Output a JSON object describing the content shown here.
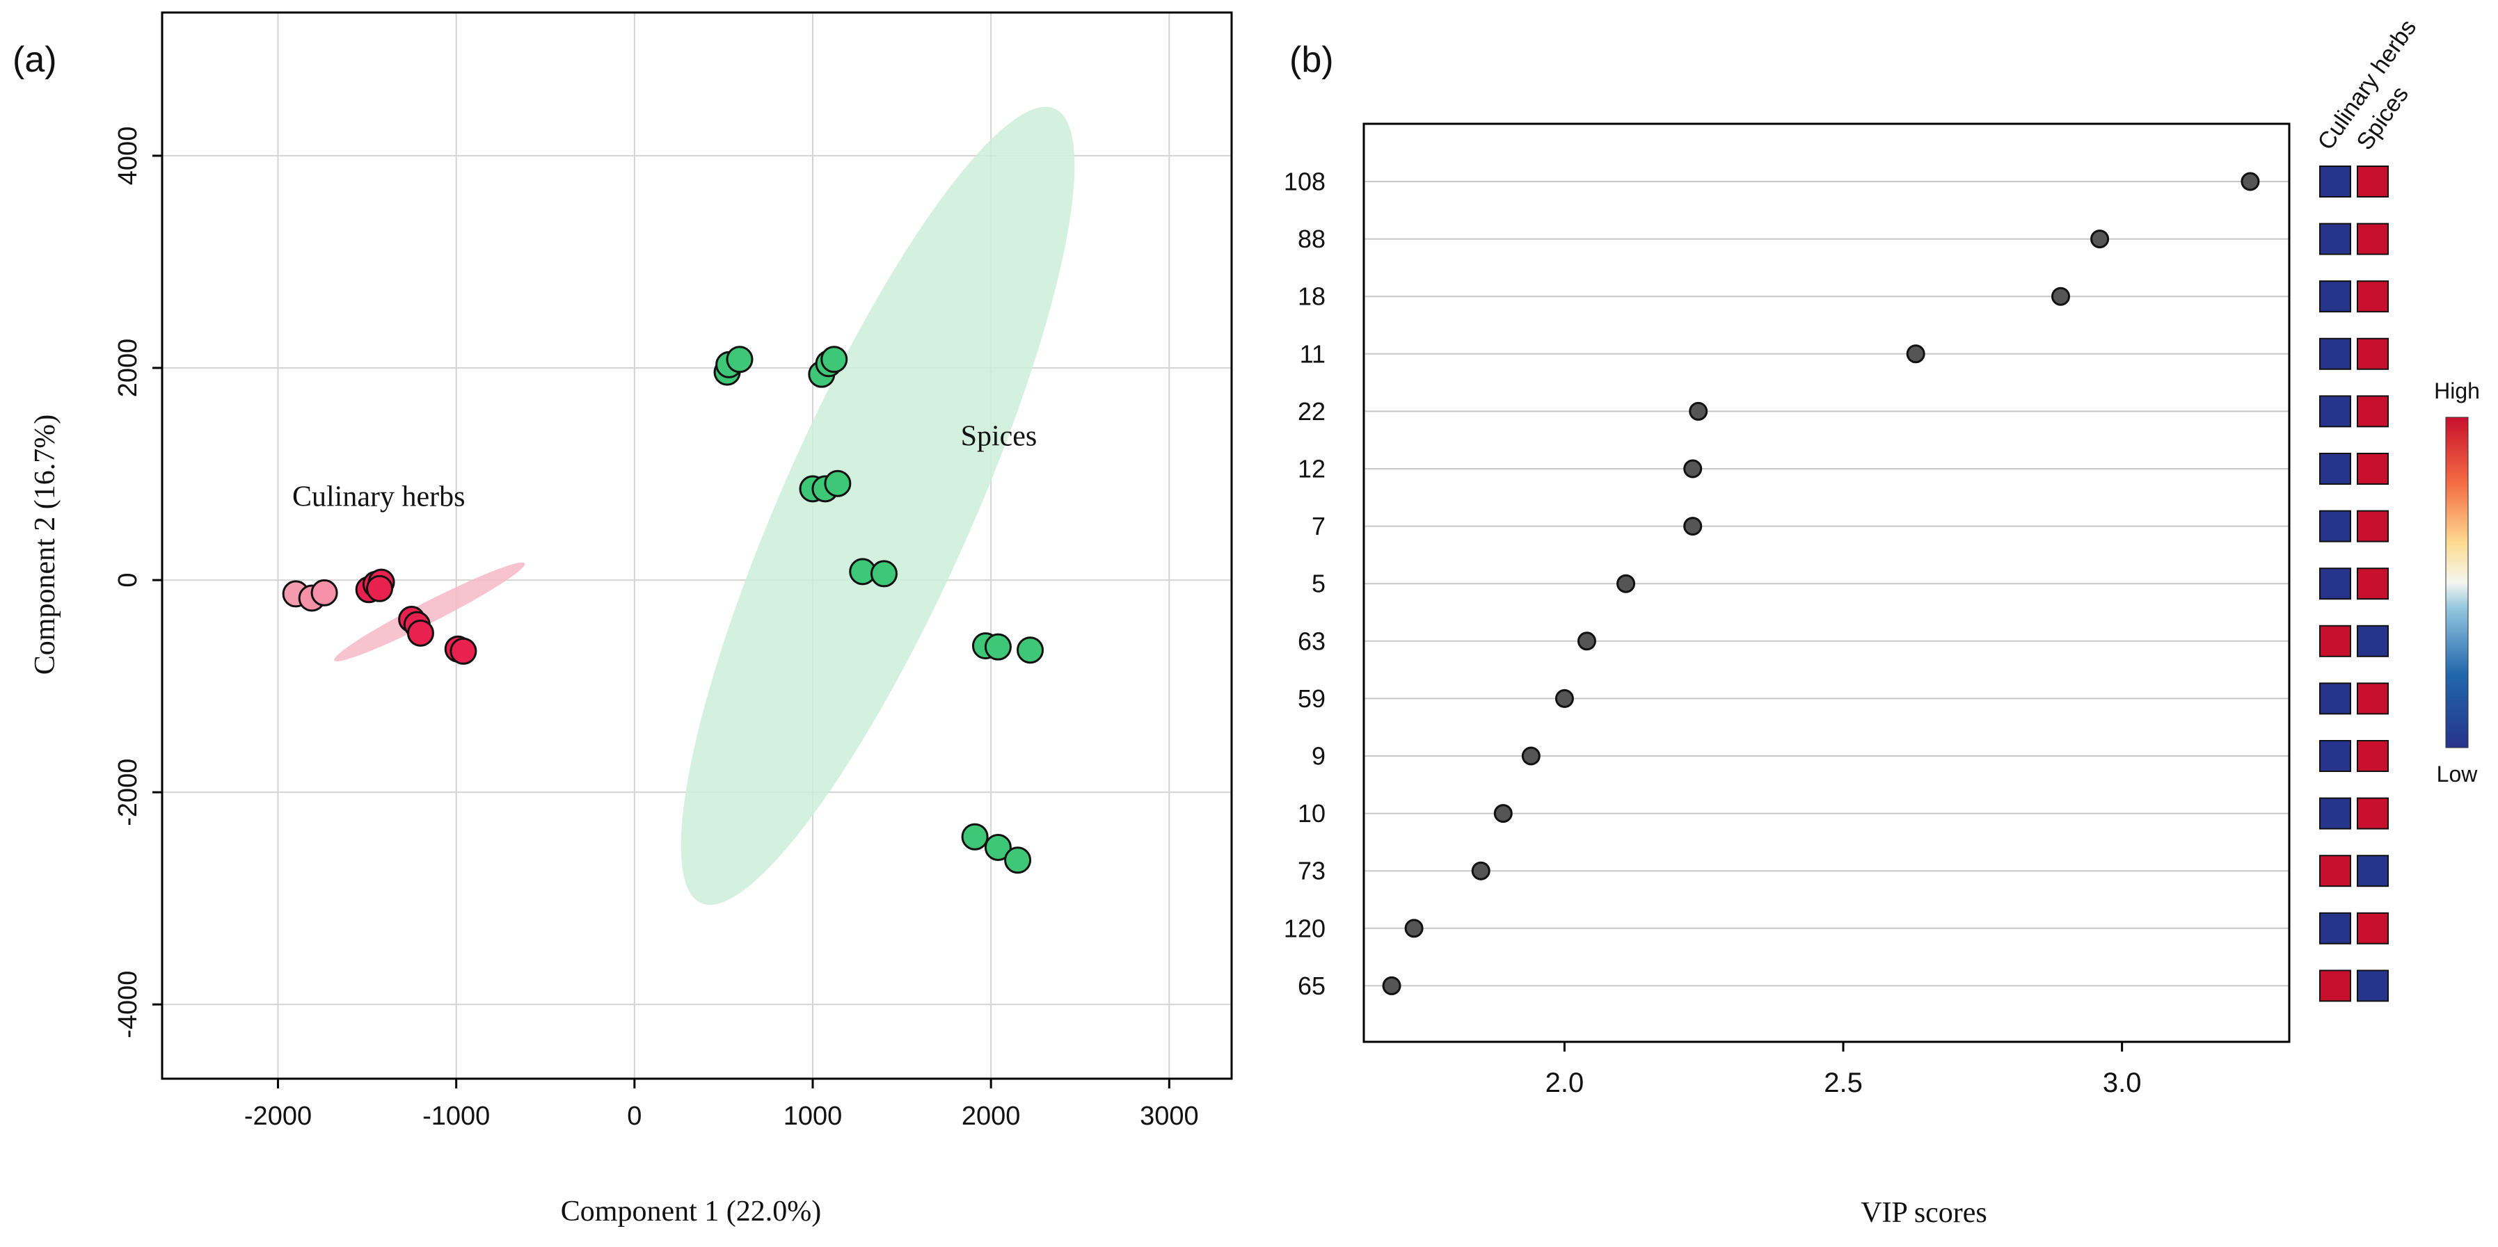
{
  "chart_data": [
    {
      "panel_label": "(a)",
      "type": "scatter",
      "xlabel": "Component 1 (22.0%)",
      "ylabel": "Component 2 (16.7%)",
      "xlim": [
        -2650,
        3350
      ],
      "ylim": [
        -4700,
        5350
      ],
      "xticks": [
        -2000,
        -1000,
        0,
        1000,
        2000,
        3000
      ],
      "xtick_labels": [
        "-2000",
        "-1000",
        "0",
        "1000",
        "2000",
        "3000"
      ],
      "yticks": [
        -4000,
        -2000,
        0,
        2000,
        4000
      ],
      "ytick_labels": [
        "-4000",
        "-2000",
        "0",
        "2000",
        "4000"
      ],
      "grid": true,
      "groups": [
        {
          "name": "Culinary herbs",
          "color": "#e8214f",
          "ellipse_color": "#f5b8c6",
          "ellipse": {
            "cx": -1150,
            "cy": -300,
            "rx": 600,
            "ry": 100,
            "angle_deg": -27
          },
          "points": [
            {
              "x": -1900,
              "y": -130,
              "shade": 0.45
            },
            {
              "x": -1810,
              "y": -170,
              "shade": 0.5
            },
            {
              "x": -1740,
              "y": -120,
              "shade": 0.5
            },
            {
              "x": -1490,
              "y": -90,
              "shade": 1.0
            },
            {
              "x": -1450,
              "y": -40,
              "shade": 1.0
            },
            {
              "x": -1420,
              "y": -20,
              "shade": 1.0
            },
            {
              "x": -1430,
              "y": -80,
              "shade": 1.0
            },
            {
              "x": -1250,
              "y": -370,
              "shade": 1.0
            },
            {
              "x": -1220,
              "y": -420,
              "shade": 1.0
            },
            {
              "x": -1200,
              "y": -500,
              "shade": 1.0
            },
            {
              "x": -990,
              "y": -650,
              "shade": 1.0
            },
            {
              "x": -960,
              "y": -670,
              "shade": 1.0
            }
          ]
        },
        {
          "name": "Spices",
          "color": "#3ec777",
          "ellipse_color": "#cdeedb",
          "ellipse": {
            "cx": 1365,
            "cy": 700,
            "rx": 2440,
            "ry": 890,
            "angle_deg": -66
          },
          "points": [
            {
              "x": 520,
              "y": 1960,
              "shade": 1.0
            },
            {
              "x": 530,
              "y": 2030,
              "shade": 1.0
            },
            {
              "x": 590,
              "y": 2080,
              "shade": 1.0
            },
            {
              "x": 1050,
              "y": 1940,
              "shade": 1.0
            },
            {
              "x": 1090,
              "y": 2040,
              "shade": 1.0
            },
            {
              "x": 1120,
              "y": 2080,
              "shade": 1.0
            },
            {
              "x": 1000,
              "y": 860,
              "shade": 1.0
            },
            {
              "x": 1070,
              "y": 860,
              "shade": 1.0
            },
            {
              "x": 1140,
              "y": 910,
              "shade": 1.0
            },
            {
              "x": 1280,
              "y": 80,
              "shade": 1.0
            },
            {
              "x": 1400,
              "y": 60,
              "shade": 1.0
            },
            {
              "x": 1970,
              "y": -620,
              "shade": 1.0
            },
            {
              "x": 2040,
              "y": -630,
              "shade": 1.0
            },
            {
              "x": 2220,
              "y": -660,
              "shade": 1.0
            },
            {
              "x": 1910,
              "y": -2420,
              "shade": 1.0
            },
            {
              "x": 2040,
              "y": -2520,
              "shade": 1.0
            },
            {
              "x": 2150,
              "y": -2640,
              "shade": 1.0
            }
          ]
        }
      ],
      "annotations": [
        {
          "text": "Culinary herbs",
          "x": -1920,
          "y": 700
        },
        {
          "text": "Spices",
          "x": 1830,
          "y": 1270
        }
      ]
    },
    {
      "panel_label": "(b)",
      "type": "dot",
      "xlabel": "VIP scores",
      "xlim": [
        1.64,
        3.3
      ],
      "xticks": [
        2.0,
        2.5,
        3.0
      ],
      "xtick_labels": [
        "2.0",
        "2.5",
        "3.0"
      ],
      "features": [
        "108",
        "88",
        "18",
        "11",
        "22",
        "12",
        "7",
        "5",
        "63",
        "59",
        "9",
        "10",
        "73",
        "120",
        "65"
      ],
      "vip": [
        3.23,
        2.96,
        2.89,
        2.63,
        2.24,
        2.23,
        2.23,
        2.11,
        2.04,
        2.0,
        1.94,
        1.89,
        1.85,
        1.73,
        1.69
      ],
      "heatmap_columns": [
        "Culinary herbs",
        "Spices"
      ],
      "heatmap_levels": [
        [
          "Low",
          "High"
        ],
        [
          "Low",
          "High"
        ],
        [
          "Low",
          "High"
        ],
        [
          "Low",
          "High"
        ],
        [
          "Low",
          "High"
        ],
        [
          "Low",
          "High"
        ],
        [
          "Low",
          "High"
        ],
        [
          "Low",
          "High"
        ],
        [
          "High",
          "Low"
        ],
        [
          "Low",
          "High"
        ],
        [
          "Low",
          "High"
        ],
        [
          "Low",
          "High"
        ],
        [
          "High",
          "Low"
        ],
        [
          "Low",
          "High"
        ],
        [
          "High",
          "Low"
        ]
      ],
      "colors": {
        "High": "#c8102e",
        "Low": "#27348b"
      },
      "colorbar": {
        "high_label": "High",
        "low_label": "Low"
      }
    }
  ]
}
